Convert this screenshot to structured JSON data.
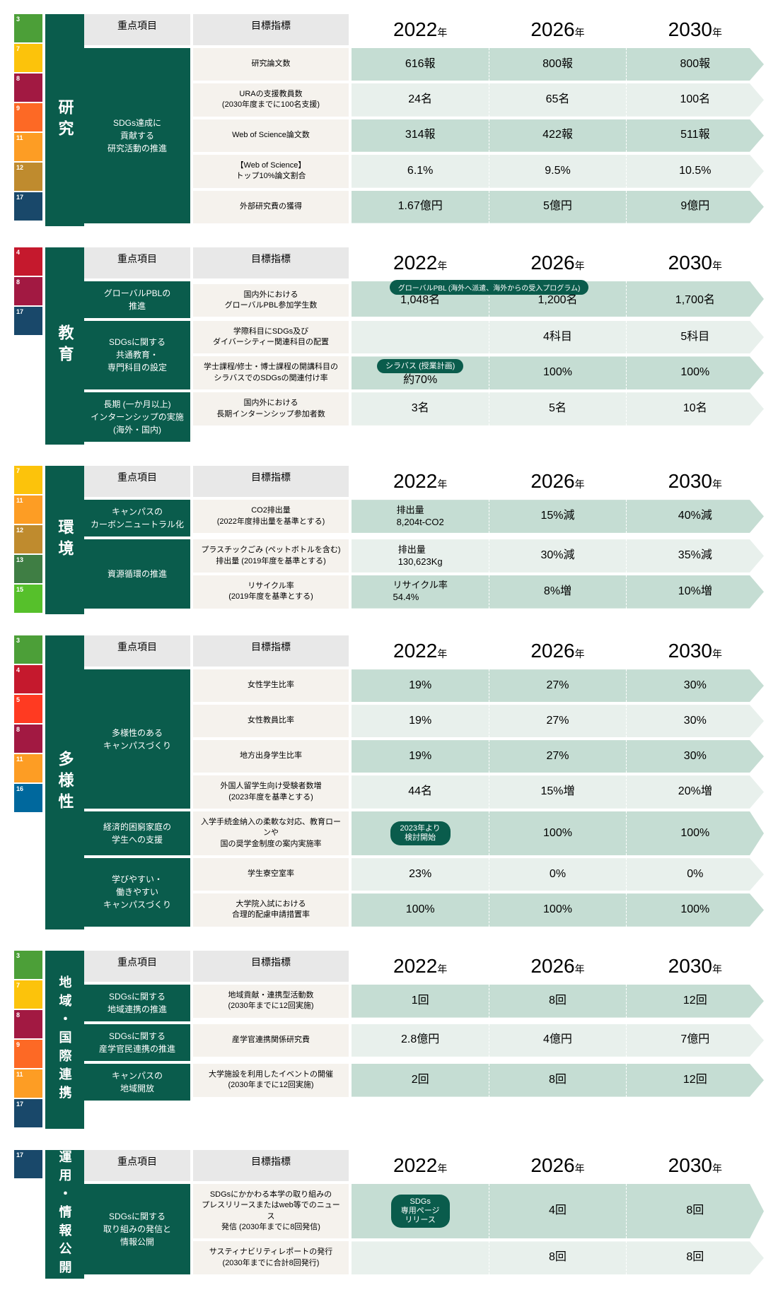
{
  "headers": {
    "priority": "重点項目",
    "indicator": "目標指標",
    "years": [
      "2022",
      "2026",
      "2030"
    ],
    "year_suffix": "年"
  },
  "sdg_colors": {
    "3": "#4c9f38",
    "4": "#c5192d",
    "5": "#ff3a21",
    "7": "#fcc30b",
    "8": "#a21942",
    "9": "#fd6925",
    "10": "#dd1367",
    "11": "#fd9d24",
    "12": "#bf8b2e",
    "13": "#3f7e44",
    "15": "#56c02b",
    "16": "#00689d",
    "17": "#19486a"
  },
  "sections": [
    {
      "id": "research",
      "label": "研究",
      "sdgs": [
        "3",
        "7",
        "8",
        "9",
        "11",
        "12",
        "17"
      ],
      "groups": [
        {
          "priority": "SDGs達成に\n貢献する\n研究活動の推進",
          "rows": [
            {
              "indicator": "研究論文数",
              "values": [
                "616報",
                "800報",
                "800報"
              ],
              "shade": "dark"
            },
            {
              "indicator": "URAの支援教員数\n(2030年度までに100名支援)",
              "values": [
                "24名",
                "65名",
                "100名"
              ],
              "shade": "light"
            },
            {
              "indicator": "Web of Science論文数",
              "values": [
                "314報",
                "422報",
                "511報"
              ],
              "shade": "dark"
            },
            {
              "indicator": "【Web of Science】\nトップ10%論文割合",
              "values": [
                "6.1%",
                "9.5%",
                "10.5%"
              ],
              "shade": "light"
            },
            {
              "indicator": "外部研究費の獲得",
              "values": [
                "1.67億円",
                "5億円",
                "9億円"
              ],
              "shade": "dark"
            }
          ]
        }
      ]
    },
    {
      "id": "education",
      "label": "教育",
      "sdgs": [
        "4",
        "8",
        "17"
      ],
      "groups": [
        {
          "priority": "グローバルPBLの\n推進",
          "rows": [
            {
              "indicator": "国内外における\nグローバルPBL参加学生数",
              "values": [
                "1,048名",
                "1,200名",
                "1,700名"
              ],
              "shade": "dark",
              "top_badge": "グローバルPBL (海外へ派遣、海外からの受入プログラム)"
            }
          ]
        },
        {
          "priority": "SDGsに関する\n共通教育・\n専門科目の設定",
          "rows": [
            {
              "indicator": "学際科目にSDGs及び\nダイバーシティー関連科目の配置",
              "values": [
                "",
                "4科目",
                "5科目"
              ],
              "shade": "light"
            },
            {
              "indicator": "学士課程/修士・博士課程の開講科目の\nシラバスでのSDGsの関連付け率",
              "values": [
                "約70%",
                "100%",
                "100%"
              ],
              "shade": "dark",
              "badge_2022": "シラバス (授業計画)"
            }
          ]
        },
        {
          "priority": "長期 (一か月以上)\nインターンシップの実施\n(海外・国内)",
          "rows": [
            {
              "indicator": "国内外における\n長期インターンシップ参加者数",
              "values": [
                "3名",
                "5名",
                "10名"
              ],
              "shade": "light"
            }
          ]
        }
      ]
    },
    {
      "id": "environment",
      "label": "環境",
      "sdgs": [
        "7",
        "11",
        "12",
        "13",
        "15"
      ],
      "groups": [
        {
          "priority": "キャンパスの\nカーボンニュートラル化",
          "rows": [
            {
              "indicator": "CO2排出量\n(2022年度排出量を基準とする)",
              "values": [
                "排出量\n8,204t-CO2",
                "15%減",
                "40%減"
              ],
              "shade": "dark",
              "left_align_2022": true
            }
          ]
        },
        {
          "priority": "資源循環の推進",
          "rows": [
            {
              "indicator": "プラスチックごみ (ペットボトルを含む)\n排出量 (2019年度を基準とする)",
              "values": [
                "排出量\n130,623Kg",
                "30%減",
                "35%減"
              ],
              "shade": "light",
              "left_align_2022": true
            },
            {
              "indicator": "リサイクル率\n(2019年度を基準とする)",
              "values": [
                "リサイクル率\n54.4%",
                "8%増",
                "10%増"
              ],
              "shade": "dark",
              "left_align_2022": true
            }
          ]
        }
      ]
    },
    {
      "id": "diversity",
      "label": "多様性",
      "sdgs": [
        "3",
        "4",
        "5",
        "8",
        "11",
        "16"
      ],
      "groups": [
        {
          "priority": "多様性のある\nキャンパスづくり",
          "rows": [
            {
              "indicator": "女性学生比率",
              "values": [
                "19%",
                "27%",
                "30%"
              ],
              "shade": "dark"
            },
            {
              "indicator": "女性教員比率",
              "values": [
                "19%",
                "27%",
                "30%"
              ],
              "shade": "light"
            },
            {
              "indicator": "地方出身学生比率",
              "values": [
                "19%",
                "27%",
                "30%"
              ],
              "shade": "dark"
            },
            {
              "indicator": "外国人留学生向け受験者数増\n(2023年度を基準とする)",
              "values": [
                "44名",
                "15%増",
                "20%増"
              ],
              "shade": "light"
            }
          ]
        },
        {
          "priority": "経済的困窮家庭の\n学生への支援",
          "rows": [
            {
              "indicator": "入学手続金納入の柔軟な対応、教育ローンや\n国の奨学金制度の案内実施率",
              "values": [
                "",
                "100%",
                "100%"
              ],
              "shade": "dark",
              "pill_2022": "2023年より\n検討開始"
            }
          ]
        },
        {
          "priority": "学びやすい・\n働きやすい\nキャンパスづくり",
          "rows": [
            {
              "indicator": "学生寮空室率",
              "values": [
                "23%",
                "0%",
                "0%"
              ],
              "shade": "light"
            },
            {
              "indicator": "大学院入試における\n合理的配慮申請措置率",
              "values": [
                "100%",
                "100%",
                "100%"
              ],
              "shade": "dark"
            }
          ]
        }
      ]
    },
    {
      "id": "regional",
      "label": "地域・\n国際連携",
      "sdgs": [
        "3",
        "7",
        "8",
        "9",
        "11",
        "17"
      ],
      "groups": [
        {
          "priority": "SDGsに関する\n地域連携の推進",
          "rows": [
            {
              "indicator": "地域貢献・連携型活動数\n(2030年までに12回実施)",
              "values": [
                "1回",
                "8回",
                "12回"
              ],
              "shade": "dark"
            }
          ]
        },
        {
          "priority": "SDGsに関する\n産学官民連携の推進",
          "rows": [
            {
              "indicator": "産学官連携関係研究費",
              "values": [
                "2.8億円",
                "4億円",
                "7億円"
              ],
              "shade": "light"
            }
          ]
        },
        {
          "priority": "キャンパスの\n地域開放",
          "rows": [
            {
              "indicator": "大学施設を利用したイベントの開催\n(2030年までに12回実施)",
              "values": [
                "2回",
                "8回",
                "12回"
              ],
              "shade": "dark"
            }
          ]
        }
      ]
    },
    {
      "id": "operation",
      "label": "運用・\n情報公開",
      "sdgs": [
        "17"
      ],
      "groups": [
        {
          "priority": "SDGsに関する\n取り組みの発信と\n情報公開",
          "rows": [
            {
              "indicator": "SDGsにかかわる本学の取り組みの\nプレスリリースまたはweb等でのニュース\n発信 (2030年までに8回発信)",
              "values": [
                "",
                "4回",
                "8回"
              ],
              "shade": "dark",
              "pill_span": "SDGs\n専用ページ\nリリース"
            },
            {
              "indicator": "サスティナビリティレポートの発行\n(2030年までに合計8回発行)",
              "values": [
                "",
                "8回",
                "8回"
              ],
              "shade": "light"
            }
          ]
        }
      ]
    }
  ]
}
